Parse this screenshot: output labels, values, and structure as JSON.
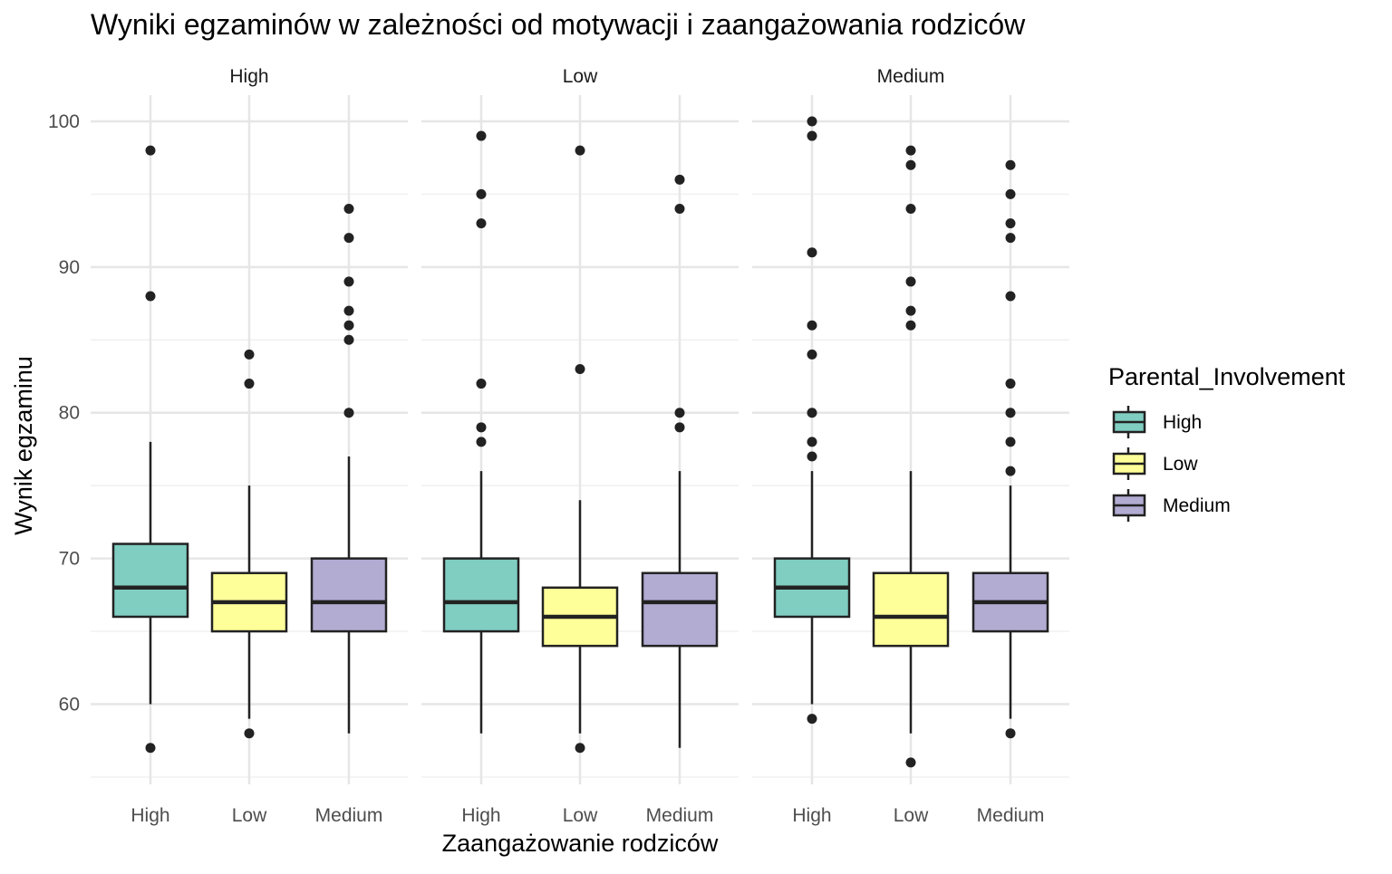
{
  "chart_data": {
    "type": "boxplot",
    "title": "Wyniki egzaminów w zależności od motywacji i zaangażowania rodziców",
    "xlabel": "Zaangażowanie rodziców",
    "ylabel": "Wynik egzaminu",
    "ylim": [
      54.5,
      101.8
    ],
    "yticks": [
      60,
      70,
      80,
      90,
      100
    ],
    "grid": true,
    "categories": [
      "High",
      "Low",
      "Medium"
    ],
    "colors": {
      "High": "#80cdc1",
      "Low": "#ffff99",
      "Medium": "#b2abd2"
    },
    "legend": {
      "title": "Parental_Involvement",
      "position": "right",
      "entries": [
        "High",
        "Low",
        "Medium"
      ]
    },
    "facets": [
      {
        "label": "High",
        "boxes": [
          {
            "category": "High",
            "lower_whisker": 60,
            "q1": 66,
            "median": 68,
            "q3": 71,
            "upper_whisker": 78,
            "outliers": [
              98,
              88,
              57
            ]
          },
          {
            "category": "Low",
            "lower_whisker": 59,
            "q1": 65,
            "median": 67,
            "q3": 69,
            "upper_whisker": 75,
            "outliers": [
              84,
              82,
              58
            ]
          },
          {
            "category": "Medium",
            "lower_whisker": 58,
            "q1": 65,
            "median": 67,
            "q3": 70,
            "upper_whisker": 77,
            "outliers": [
              94,
              92,
              89,
              87,
              86,
              85,
              80
            ]
          }
        ]
      },
      {
        "label": "Low",
        "boxes": [
          {
            "category": "High",
            "lower_whisker": 58,
            "q1": 65,
            "median": 67,
            "q3": 70,
            "upper_whisker": 76,
            "outliers": [
              99,
              95,
              93,
              82,
              79,
              78
            ]
          },
          {
            "category": "Low",
            "lower_whisker": 58,
            "q1": 64,
            "median": 66,
            "q3": 68,
            "upper_whisker": 74,
            "outliers": [
              98,
              83,
              57
            ]
          },
          {
            "category": "Medium",
            "lower_whisker": 57,
            "q1": 64,
            "median": 67,
            "q3": 69,
            "upper_whisker": 76,
            "outliers": [
              96,
              94,
              80,
              79
            ]
          }
        ]
      },
      {
        "label": "Medium",
        "boxes": [
          {
            "category": "High",
            "lower_whisker": 60,
            "q1": 66,
            "median": 68,
            "q3": 70,
            "upper_whisker": 76,
            "outliers": [
              100,
              99,
              91,
              86,
              84,
              80,
              78,
              77,
              59
            ]
          },
          {
            "category": "Low",
            "lower_whisker": 58,
            "q1": 64,
            "median": 66,
            "q3": 69,
            "upper_whisker": 76,
            "outliers": [
              98,
              97,
              94,
              89,
              87,
              86,
              56
            ]
          },
          {
            "category": "Medium",
            "lower_whisker": 59,
            "q1": 65,
            "median": 67,
            "q3": 69,
            "upper_whisker": 75,
            "outliers": [
              97,
              95,
              93,
              92,
              88,
              82,
              80,
              78,
              76,
              58
            ]
          }
        ]
      }
    ]
  }
}
